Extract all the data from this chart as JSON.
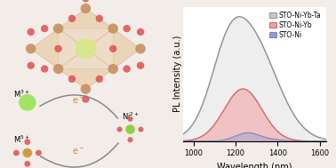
{
  "xlabel": "Wavelength (nm)",
  "ylabel": "PL Intensity (a.u.)",
  "xlim": [
    950,
    1630
  ],
  "ylim": [
    0,
    1.08
  ],
  "xticks": [
    1000,
    1200,
    1400,
    1600
  ],
  "legend": [
    "STO-Ni-Yb-Ta",
    "STO-Ni-Yb",
    "STO-Ni"
  ],
  "peak_gray_main": 1260,
  "peak_gray_shoulder": 1155,
  "peak_red": 1235,
  "peak_blue": 1250,
  "sigma_gray_main": 130,
  "sigma_gray_shoulder": 75,
  "sigma_red": 90,
  "sigma_blue": 55,
  "amp_gray_main": 1.0,
  "amp_gray_shoulder": 0.3,
  "amp_red": 0.42,
  "amp_blue": 0.055,
  "color_gray": "#909090",
  "color_red": "#d86060",
  "color_blue": "#7788bb",
  "fill_gray": "#c8c8c8",
  "fill_red": "#f0a0a0",
  "fill_blue": "#9999cc",
  "background": "#f2ede8",
  "font_size": 7
}
